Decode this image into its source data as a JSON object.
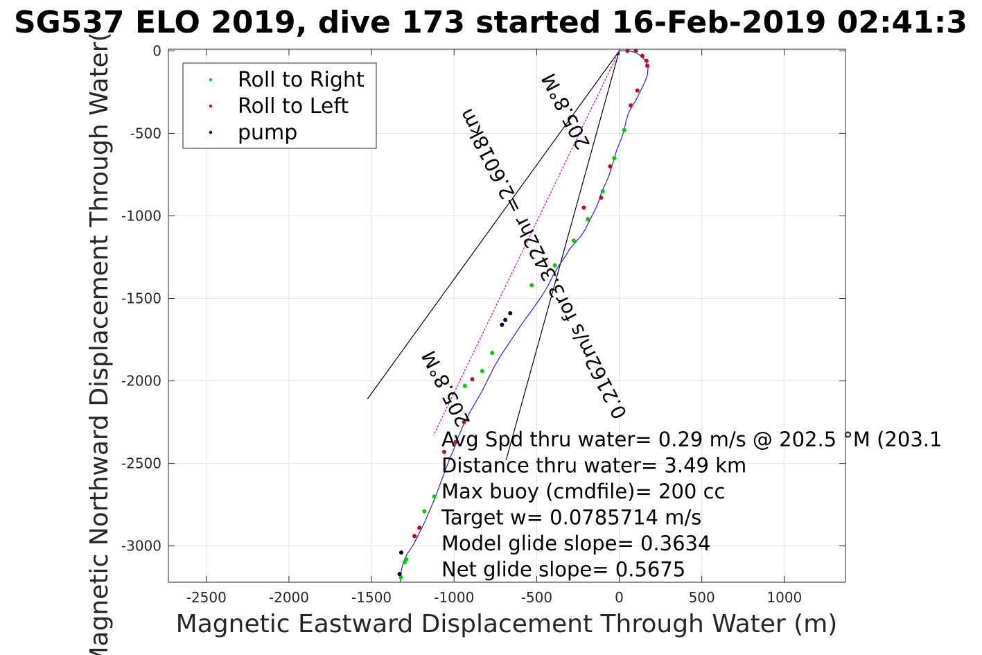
{
  "chart_data": {
    "type": "line",
    "title": "SG537 ELO 2019, dive 173 started 16-Feb-2019 02:41:3",
    "xlabel": "Magnetic Eastward Displacement Through Water (m)",
    "ylabel": "Magnetic Northward Displacement Through Water(",
    "xlim": [
      -2730,
      1370
    ],
    "ylim": [
      -3220,
      10
    ],
    "xticks": [
      -2500,
      -2000,
      -1500,
      -1000,
      -500,
      0,
      500,
      1000
    ],
    "xtick_labels": [
      "-2500",
      "-2000",
      "-1500",
      "-1000",
      "-500",
      "0",
      "500",
      "1000"
    ],
    "yticks": [
      0,
      -500,
      -1000,
      -1500,
      -2000,
      -2500,
      -3000
    ],
    "ytick_labels": [
      "0",
      "-500",
      "-1000",
      "-1500",
      "-2000",
      "-2500",
      "-3000"
    ],
    "grid": true,
    "legend_position": "top-left",
    "colors": {
      "track": "#1f1fff",
      "roll_right": "#00cc00",
      "roll_left": "#d4001c",
      "pump": "#000033",
      "glide": "#cc00cc",
      "lines": "#000000"
    },
    "legend": [
      {
        "label": "Roll to Right",
        "color": "#00cc00"
      },
      {
        "label": "Roll to Left",
        "color": "#d4001c"
      },
      {
        "label": "pump",
        "color": "#000033"
      }
    ],
    "series": [
      {
        "kind": "track",
        "x": [
          0,
          25,
          60,
          100,
          130,
          160,
          175,
          170,
          150,
          125,
          100,
          75,
          55,
          40,
          30,
          10,
          -15,
          -30,
          -45,
          -60,
          -80,
          -105,
          -120,
          -140,
          -160,
          -180,
          -205,
          -230,
          -265,
          -300,
          -330,
          -365,
          -400,
          -430,
          -465,
          -500,
          -535,
          -565,
          -600,
          -640,
          -680,
          -720,
          -760,
          -795,
          -830,
          -870,
          -910,
          -945,
          -975,
          -1000,
          -1030,
          -1060,
          -1090,
          -1120,
          -1150,
          -1180,
          -1205,
          -1225,
          -1245,
          -1265,
          -1285,
          -1300,
          -1310,
          -1318,
          -1322,
          -1325,
          -1327
        ],
        "y": [
          0,
          0,
          0,
          -10,
          -30,
          -60,
          -100,
          -150,
          -200,
          -250,
          -300,
          -340,
          -380,
          -430,
          -480,
          -540,
          -600,
          -650,
          -700,
          -750,
          -800,
          -850,
          -900,
          -950,
          -990,
          -1030,
          -1080,
          -1120,
          -1160,
          -1200,
          -1250,
          -1300,
          -1360,
          -1420,
          -1480,
          -1530,
          -1580,
          -1620,
          -1670,
          -1730,
          -1790,
          -1850,
          -1920,
          -1990,
          -2060,
          -2130,
          -2200,
          -2270,
          -2340,
          -2410,
          -2480,
          -2560,
          -2640,
          -2720,
          -2790,
          -2860,
          -2910,
          -2950,
          -2990,
          -3020,
          -3050,
          -3080,
          -3110,
          -3140,
          -3170,
          -3200,
          -3220
        ]
      }
    ],
    "markers": {
      "roll_right": [
        [
          30,
          -480
        ],
        [
          -30,
          -650
        ],
        [
          -100,
          -850
        ],
        [
          -190,
          -1020
        ],
        [
          -275,
          -1150
        ],
        [
          -390,
          -1300
        ],
        [
          -530,
          -1420
        ],
        [
          -770,
          -1830
        ],
        [
          -830,
          -1940
        ],
        [
          -935,
          -2030
        ],
        [
          -1120,
          -2700
        ],
        [
          -1180,
          -2790
        ],
        [
          -1290,
          -3080
        ],
        [
          -1300,
          -3100
        ],
        [
          -1322,
          -3190
        ]
      ],
      "roll_left": [
        [
          50,
          0
        ],
        [
          100,
          0
        ],
        [
          140,
          -30
        ],
        [
          165,
          -60
        ],
        [
          170,
          -90
        ],
        [
          110,
          -240
        ],
        [
          70,
          -330
        ],
        [
          -55,
          -700
        ],
        [
          -110,
          -890
        ],
        [
          -215,
          -950
        ],
        [
          -890,
          -1990
        ],
        [
          -940,
          -2250
        ],
        [
          -990,
          -2370
        ],
        [
          -1060,
          -2430
        ],
        [
          -1210,
          -2890
        ],
        [
          -1240,
          -2940
        ]
      ],
      "pump": [
        [
          -660,
          -1590
        ],
        [
          -690,
          -1630
        ],
        [
          -710,
          -1660
        ],
        [
          -1320,
          -3040
        ],
        [
          -1330,
          -3170
        ]
      ]
    },
    "glide_line": {
      "x": [
        0,
        -1125
      ],
      "y": [
        0,
        -2330
      ]
    },
    "ref_lines": [
      {
        "x": [
          0,
          -1525
        ],
        "y": [
          0,
          -2110
        ]
      },
      {
        "x": [
          0,
          -685
        ],
        "y": [
          0,
          -2480
        ]
      }
    ],
    "rotated_labels": {
      "heading_top": "205.8°M",
      "speed": "0.2162m/s for3.3422hr =2.6018km",
      "heading_bottom": "205.8°M"
    },
    "annotations": [
      "Avg Spd thru water=  0.29 m/s @ 202.5 °M (203.1",
      "Distance thru water=  3.49 km",
      "Max buoy (cmdfile)= 200 cc",
      "Target w= 0.0785714 m/s",
      "Model glide slope= 0.3634",
      "Net glide slope= 0.5675"
    ]
  }
}
